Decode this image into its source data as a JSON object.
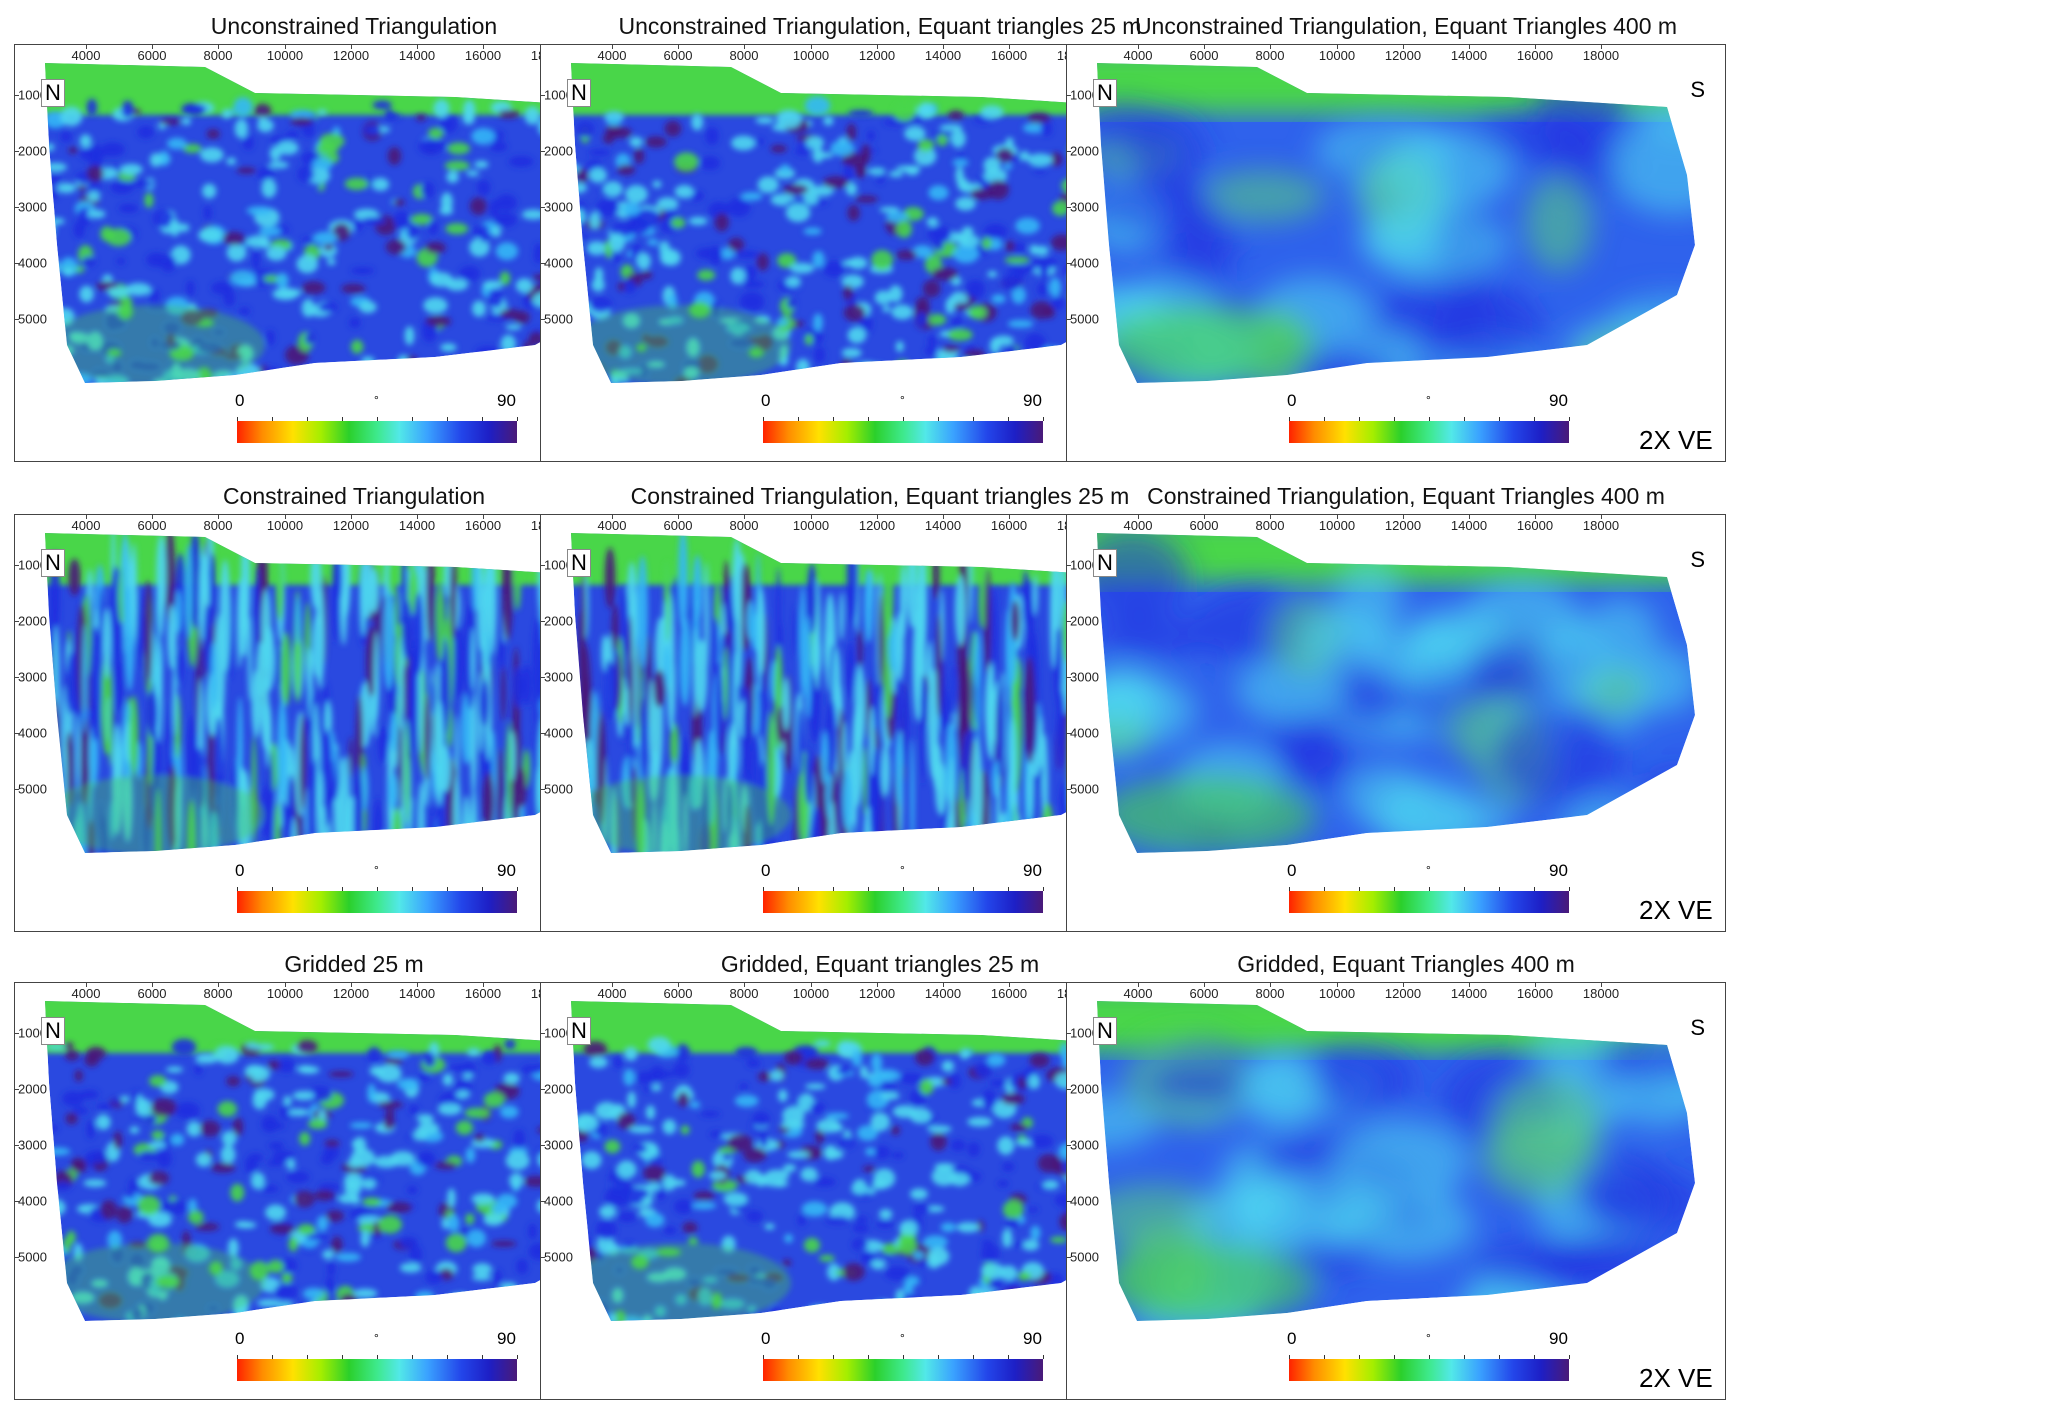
{
  "panels": [
    {
      "title": "Unconstrained Triangulation",
      "style": "speckle"
    },
    {
      "title": "Unconstrained Triangulation, Equant triangles 25 m",
      "style": "speckle-dense"
    },
    {
      "title": "Unconstrained Triangulation, Equant Triangles 400 m",
      "style": "smooth"
    },
    {
      "title": "Constrained Triangulation",
      "style": "streak-light"
    },
    {
      "title": "Constrained Triangulation, Equant triangles 25 m",
      "style": "streak"
    },
    {
      "title": "Constrained Triangulation, Equant Triangles 400 m",
      "style": "smooth"
    },
    {
      "title": "Gridded 25 m",
      "style": "speckle"
    },
    {
      "title": "Gridded, Equant triangles 25 m",
      "style": "speckle"
    },
    {
      "title": "Gridded, Equant Triangles 400 m",
      "style": "smooth"
    }
  ],
  "x_ticks": [
    "4000",
    "6000",
    "8000",
    "10000",
    "12000",
    "14000",
    "16000",
    "18000"
  ],
  "y_ticks": [
    "1000",
    "2000",
    "3000",
    "4000",
    "5000"
  ],
  "north_label": "N",
  "south_label": "S",
  "colorbar": {
    "min": "0",
    "max": "90",
    "unit": "°"
  },
  "ve_label": "2X VE",
  "colors": {
    "shallow": "#49d64a",
    "mid": "#4fd8f0",
    "deep": "#1f2fe0",
    "steep": "#4a1a78"
  }
}
